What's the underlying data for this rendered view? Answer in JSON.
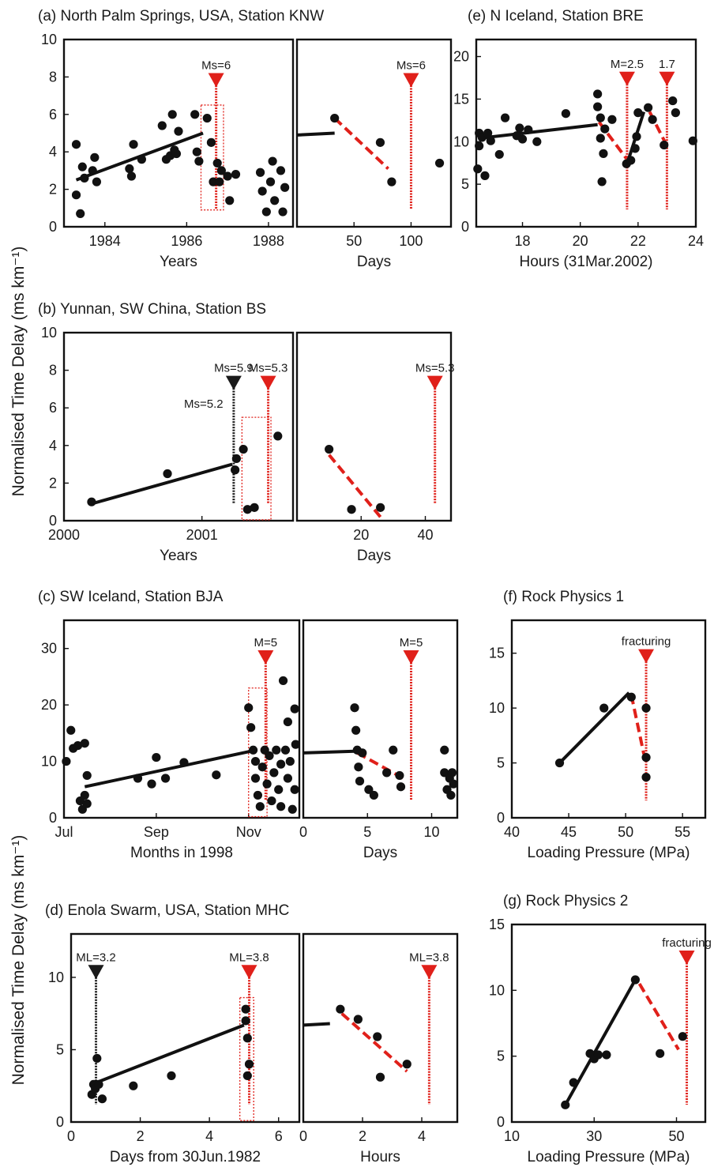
{
  "ylabel": "Normalised Time Delay (ms km⁻¹)",
  "colors": {
    "event": "#e0201a",
    "black_event": "#1a1a1a",
    "points": "#111111",
    "trend": "#111111",
    "rect": "#e0201a"
  },
  "chart_data": [
    {
      "id": "a-years",
      "type": "scatter",
      "title": "(a) North Palm Springs, USA, Station KNW",
      "xlabel": "Years",
      "xlim": [
        1983.0,
        1988.6
      ],
      "ylim": [
        0,
        10
      ],
      "xticks": [
        1984,
        1986,
        1988
      ],
      "yticks": [
        0,
        2,
        4,
        6,
        8,
        10
      ],
      "points": [
        [
          1983.3,
          4.4
        ],
        [
          1983.3,
          1.7
        ],
        [
          1983.4,
          0.7
        ],
        [
          1983.45,
          3.2
        ],
        [
          1983.5,
          2.6
        ],
        [
          1983.7,
          3.0
        ],
        [
          1983.75,
          3.7
        ],
        [
          1983.8,
          2.4
        ],
        [
          1984.6,
          3.1
        ],
        [
          1984.65,
          2.7
        ],
        [
          1984.7,
          4.4
        ],
        [
          1984.9,
          3.6
        ],
        [
          1985.4,
          5.4
        ],
        [
          1985.5,
          3.6
        ],
        [
          1985.6,
          3.8
        ],
        [
          1985.65,
          6.0
        ],
        [
          1985.7,
          4.1
        ],
        [
          1985.75,
          3.9
        ],
        [
          1985.8,
          5.1
        ],
        [
          1986.2,
          6.0
        ],
        [
          1986.25,
          4.0
        ],
        [
          1986.3,
          3.5
        ],
        [
          1986.5,
          5.8
        ],
        [
          1986.6,
          4.5
        ],
        [
          1986.65,
          2.4
        ],
        [
          1986.75,
          3.4
        ],
        [
          1986.8,
          2.4
        ],
        [
          1986.85,
          3.0
        ],
        [
          1987.0,
          2.7
        ],
        [
          1987.05,
          1.4
        ],
        [
          1987.2,
          2.8
        ],
        [
          1987.8,
          2.9
        ],
        [
          1987.85,
          1.9
        ],
        [
          1987.95,
          0.8
        ],
        [
          1988.05,
          2.4
        ],
        [
          1988.1,
          3.5
        ],
        [
          1988.15,
          1.4
        ],
        [
          1988.3,
          3.0
        ],
        [
          1988.35,
          0.8
        ],
        [
          1988.4,
          2.1
        ]
      ],
      "trend": [
        [
          1983.3,
          2.5
        ],
        [
          1986.4,
          5.0
        ]
      ],
      "events": [
        {
          "label": "Ms=6",
          "x": 1986.72,
          "top": 7.7,
          "color": "red"
        }
      ],
      "rects": [
        [
          1986.35,
          0.9,
          1986.9,
          6.5
        ]
      ]
    },
    {
      "id": "a-days",
      "type": "scatter",
      "title": "",
      "xlabel": "Days",
      "xlim": [
        0,
        135
      ],
      "ylim": [
        0,
        10
      ],
      "xticks": [
        50,
        100
      ],
      "yticks": [],
      "points": [
        [
          33,
          5.8
        ],
        [
          73,
          4.5
        ],
        [
          83,
          2.4
        ],
        [
          125,
          3.4
        ]
      ],
      "trend": [
        [
          0,
          4.9
        ],
        [
          33,
          5.0
        ]
      ],
      "redtrend": [
        [
          33,
          5.8
        ],
        [
          80,
          3.1
        ]
      ],
      "events": [
        {
          "label": "Ms=6",
          "x": 100,
          "top": 7.7,
          "color": "red"
        }
      ],
      "rects": []
    },
    {
      "id": "e",
      "type": "scatter",
      "title": "(e) N Iceland, Station BRE",
      "xlabel": "Hours (31Mar.2002)",
      "xlim": [
        16.4,
        24
      ],
      "ylim": [
        0,
        22
      ],
      "xticks": [
        18,
        20,
        22,
        24
      ],
      "yticks": [
        0,
        5,
        10,
        15,
        20
      ],
      "points": [
        [
          16.45,
          6.8
        ],
        [
          16.5,
          9.5
        ],
        [
          16.5,
          11
        ],
        [
          16.6,
          10.5
        ],
        [
          16.7,
          6.0
        ],
        [
          16.8,
          11
        ],
        [
          16.9,
          10.1
        ],
        [
          17.2,
          8.5
        ],
        [
          17.4,
          12.8
        ],
        [
          17.8,
          10.7
        ],
        [
          17.9,
          11.6
        ],
        [
          18.0,
          10.3
        ],
        [
          18.2,
          11.4
        ],
        [
          18.5,
          10.0
        ],
        [
          19.5,
          13.3
        ],
        [
          20.6,
          15.6
        ],
        [
          20.6,
          14.1
        ],
        [
          20.7,
          12.8
        ],
        [
          20.7,
          10.4
        ],
        [
          20.75,
          5.3
        ],
        [
          20.8,
          8.6
        ],
        [
          20.85,
          11.5
        ],
        [
          21.1,
          12.6
        ],
        [
          21.6,
          7.4
        ],
        [
          21.75,
          7.8
        ],
        [
          21.9,
          9.2
        ],
        [
          21.95,
          10.6
        ],
        [
          22.0,
          13.4
        ],
        [
          22.35,
          14.0
        ],
        [
          22.5,
          12.6
        ],
        [
          22.9,
          9.6
        ],
        [
          23.2,
          14.8
        ],
        [
          23.3,
          13.4
        ],
        [
          23.9,
          10.1
        ]
      ],
      "trend": [
        [
          16.5,
          10.4
        ],
        [
          20.6,
          12.0
        ]
      ],
      "redtrend": [
        [
          20.65,
          12.3
        ],
        [
          21.6,
          8.0
        ]
      ],
      "trend2": [
        [
          21.65,
          7.7
        ],
        [
          22.2,
          13.5
        ]
      ],
      "redtrend2": [
        [
          22.4,
          13.5
        ],
        [
          23.0,
          9.5
        ]
      ],
      "events": [
        {
          "label": "M=2.5",
          "x": 21.62,
          "top": 17.1,
          "color": "red"
        },
        {
          "label": "1.7",
          "x": 23.0,
          "top": 17.1,
          "color": "red"
        }
      ],
      "rects": []
    },
    {
      "id": "b-years",
      "type": "scatter",
      "title": "(b) Yunnan, SW China, Station BS",
      "xlabel": "Years",
      "xlim": [
        2000,
        2001.66
      ],
      "ylim": [
        0,
        10
      ],
      "xticks": [
        2000,
        2001
      ],
      "yticks": [
        0,
        2,
        4,
        6,
        8,
        10
      ],
      "points": [
        [
          2000.2,
          1.0
        ],
        [
          2000.75,
          2.5
        ],
        [
          2001.24,
          2.7
        ],
        [
          2001.25,
          3.3
        ],
        [
          2001.3,
          3.8
        ],
        [
          2001.33,
          0.6
        ],
        [
          2001.38,
          0.7
        ],
        [
          2001.55,
          4.5
        ]
      ],
      "trend": [
        [
          2000.2,
          0.9
        ],
        [
          2001.22,
          3.0
        ]
      ],
      "events": [
        {
          "label": "Ms=5.9",
          "x": 2001.23,
          "top": 7.2,
          "color": "black"
        },
        {
          "label": "Ms=5.3",
          "x": 2001.48,
          "top": 7.2,
          "color": "red"
        }
      ],
      "extra_labels": [
        {
          "label": "Ms=5.2",
          "x": 2001.2,
          "y": 6.0
        }
      ],
      "rects": [
        [
          2001.29,
          0.05,
          2001.5,
          5.5
        ]
      ]
    },
    {
      "id": "b-days",
      "type": "scatter",
      "title": "",
      "xlabel": "Days",
      "xlim": [
        0,
        48
      ],
      "ylim": [
        0,
        10
      ],
      "xticks": [
        20,
        40
      ],
      "yticks": [],
      "points": [
        [
          10,
          3.8
        ],
        [
          17,
          0.6
        ],
        [
          26,
          0.7
        ]
      ],
      "redtrend": [
        [
          10,
          3.5
        ],
        [
          26,
          0.2
        ]
      ],
      "events": [
        {
          "label": "Ms=5.3",
          "x": 43,
          "top": 7.2,
          "color": "red"
        }
      ],
      "rects": []
    },
    {
      "id": "c-months",
      "type": "scatter",
      "title": "(c) SW Iceland, Station BJA",
      "xlabel": "Months in 1998",
      "xlim": [
        0,
        5.1
      ],
      "ylim": [
        0,
        35
      ],
      "xticks": [
        0,
        2,
        4
      ],
      "xticklabels": [
        "Jul",
        "Sep",
        "Nov"
      ],
      "yticks": [
        0,
        10,
        20,
        30
      ],
      "points": [
        [
          0.05,
          10
        ],
        [
          0.15,
          15.5
        ],
        [
          0.2,
          12.3
        ],
        [
          0.3,
          12.8
        ],
        [
          0.35,
          3
        ],
        [
          0.4,
          1.5
        ],
        [
          0.45,
          4
        ],
        [
          0.45,
          13.2
        ],
        [
          0.5,
          7.5
        ],
        [
          0.5,
          2.5
        ],
        [
          1.6,
          7
        ],
        [
          1.9,
          6
        ],
        [
          2.0,
          10.7
        ],
        [
          2.2,
          7
        ],
        [
          2.6,
          9.8
        ],
        [
          3.3,
          7.6
        ],
        [
          4.0,
          19.5
        ],
        [
          4.05,
          16
        ],
        [
          4.1,
          12
        ],
        [
          4.15,
          10
        ],
        [
          4.15,
          7
        ],
        [
          4.2,
          4
        ],
        [
          4.25,
          2
        ],
        [
          4.3,
          9
        ],
        [
          4.35,
          12
        ],
        [
          4.4,
          6
        ],
        [
          4.45,
          11
        ],
        [
          4.5,
          3
        ],
        [
          4.55,
          8
        ],
        [
          4.6,
          12
        ],
        [
          4.65,
          5
        ],
        [
          4.7,
          2
        ],
        [
          4.7,
          9.5
        ],
        [
          4.75,
          24.3
        ],
        [
          4.8,
          12
        ],
        [
          4.85,
          7
        ],
        [
          4.85,
          17
        ],
        [
          4.9,
          10
        ],
        [
          4.95,
          1.5
        ],
        [
          5.0,
          5
        ],
        [
          5.0,
          19.3
        ],
        [
          5.02,
          13
        ]
      ],
      "trend": [
        [
          0.45,
          5.5
        ],
        [
          4.05,
          11.8
        ]
      ],
      "events": [
        {
          "label": "M=5",
          "x": 4.37,
          "top": 28,
          "color": "red"
        }
      ],
      "rects": [
        [
          4.0,
          0.2,
          4.4,
          23
        ]
      ]
    },
    {
      "id": "c-days",
      "type": "scatter",
      "title": "",
      "xlabel": "Days",
      "xlim": [
        0,
        12
      ],
      "ylim": [
        0,
        35
      ],
      "xticks": [
        0,
        5,
        10
      ],
      "yticks": [],
      "points": [
        [
          4,
          19.5
        ],
        [
          4.1,
          15.5
        ],
        [
          4.2,
          12
        ],
        [
          4.3,
          9
        ],
        [
          4.4,
          6.5
        ],
        [
          4.6,
          11.5
        ],
        [
          5.1,
          5
        ],
        [
          5.5,
          4
        ],
        [
          6.5,
          8
        ],
        [
          7,
          12
        ],
        [
          7.5,
          7.5
        ],
        [
          7.6,
          5.5
        ],
        [
          11,
          12
        ],
        [
          11,
          8
        ],
        [
          11.2,
          5
        ],
        [
          11.4,
          7
        ],
        [
          11.5,
          4
        ],
        [
          11.6,
          8
        ],
        [
          11.7,
          6
        ]
      ],
      "trend": [
        [
          0,
          11.5
        ],
        [
          4.0,
          11.8
        ]
      ],
      "redtrend": [
        [
          4.2,
          11.5
        ],
        [
          7.8,
          7.0
        ]
      ],
      "events": [
        {
          "label": "M=5",
          "x": 8.4,
          "top": 28,
          "color": "red"
        }
      ],
      "rects": []
    },
    {
      "id": "f",
      "type": "scatter",
      "title": "(f) Rock Physics 1",
      "xlabel": "Loading Pressure (MPa)",
      "xlim": [
        40,
        57
      ],
      "ylim": [
        0,
        18
      ],
      "xticks": [
        40,
        45,
        50,
        55
      ],
      "yticks": [
        0,
        5,
        10,
        15
      ],
      "points": [
        [
          44.2,
          5
        ],
        [
          48.1,
          10
        ],
        [
          50.5,
          11
        ],
        [
          51.8,
          10
        ],
        [
          51.8,
          5.5
        ],
        [
          51.8,
          3.7
        ]
      ],
      "trend": [
        [
          44.2,
          5
        ],
        [
          50.3,
          11.4
        ]
      ],
      "redtrend": [
        [
          50.5,
          11.2
        ],
        [
          51.6,
          5.8
        ]
      ],
      "events": [
        {
          "label": "fracturing",
          "x": 51.8,
          "top": 14.5,
          "color": "red"
        }
      ],
      "rects": []
    },
    {
      "id": "d-days",
      "type": "scatter",
      "title": "(d) Enola Swarm, USA, Station MHC",
      "xlabel": "Days from 30Jun.1982",
      "xlim": [
        0,
        6.6
      ],
      "ylim": [
        0,
        13
      ],
      "xticks": [
        0,
        2,
        4,
        6
      ],
      "yticks": [
        0,
        5,
        10
      ],
      "points": [
        [
          0.6,
          1.9
        ],
        [
          0.65,
          2.6
        ],
        [
          0.7,
          2.3
        ],
        [
          0.75,
          4.4
        ],
        [
          0.8,
          2.6
        ],
        [
          0.9,
          1.6
        ],
        [
          1.8,
          2.5
        ],
        [
          2.9,
          3.2
        ],
        [
          5.05,
          7.8
        ],
        [
          5.05,
          7.0
        ],
        [
          5.1,
          5.8
        ],
        [
          5.15,
          4.0
        ],
        [
          5.1,
          3.2
        ]
      ],
      "trend": [
        [
          0.7,
          2.7
        ],
        [
          5.0,
          6.7
        ]
      ],
      "events": [
        {
          "label": "ML=3.2",
          "x": 0.72,
          "top": 10.2,
          "color": "black"
        },
        {
          "label": "ML=3.8",
          "x": 5.15,
          "top": 10.2,
          "color": "red"
        }
      ],
      "rects": [
        [
          4.88,
          0.1,
          5.28,
          8.6
        ]
      ]
    },
    {
      "id": "d-hours",
      "type": "scatter",
      "title": "",
      "xlabel": "Hours",
      "xlim": [
        0,
        5.2
      ],
      "ylim": [
        0,
        13
      ],
      "xticks": [
        0,
        2,
        4
      ],
      "yticks": [],
      "points": [
        [
          1.25,
          7.8
        ],
        [
          1.85,
          7.1
        ],
        [
          2.5,
          5.9
        ],
        [
          2.6,
          3.1
        ],
        [
          3.5,
          4.0
        ]
      ],
      "trend": [
        [
          0,
          6.7
        ],
        [
          0.9,
          6.8
        ]
      ],
      "redtrend": [
        [
          1.3,
          7.5
        ],
        [
          3.5,
          3.5
        ]
      ],
      "events": [
        {
          "label": "ML=3.8",
          "x": 4.25,
          "top": 10.2,
          "color": "red"
        }
      ],
      "rects": []
    },
    {
      "id": "g",
      "type": "scatter",
      "title": "(g) Rock Physics 2",
      "xlabel": "Loading Pressure (MPa)",
      "xlim": [
        10,
        57
      ],
      "ylim": [
        0,
        15
      ],
      "xticks": [
        10,
        30,
        50
      ],
      "yticks": [
        0,
        5,
        10,
        15
      ],
      "points": [
        [
          23,
          1.3
        ],
        [
          25,
          3
        ],
        [
          29,
          5.2
        ],
        [
          30,
          4.8
        ],
        [
          31,
          5.1
        ],
        [
          33,
          5.1
        ],
        [
          40,
          10.8
        ],
        [
          46,
          5.2
        ],
        [
          51.5,
          6.5
        ]
      ],
      "trend": [
        [
          23,
          1.3
        ],
        [
          40,
          10.8
        ]
      ],
      "redtrend": [
        [
          41,
          10.5
        ],
        [
          50.5,
          5.5
        ]
      ],
      "events": [
        {
          "label": "fracturing",
          "x": 52.5,
          "top": 12.3,
          "color": "red"
        }
      ],
      "rects": []
    }
  ]
}
